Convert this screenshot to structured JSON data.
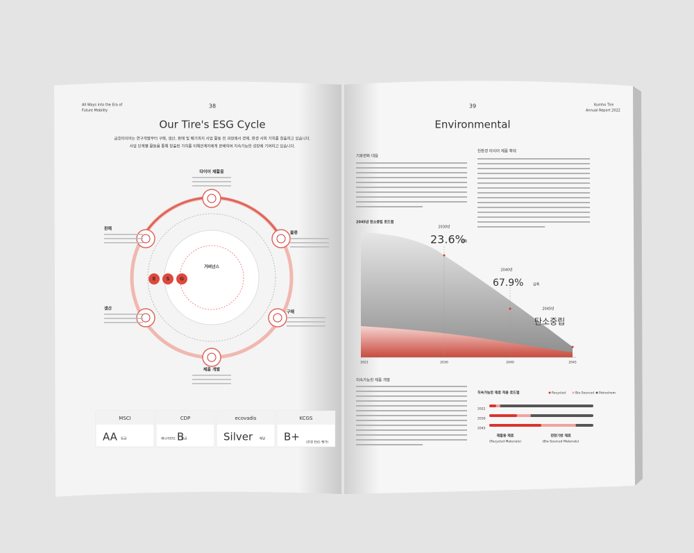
{
  "left_page": {
    "header": "All Ways into the Era of",
    "header2": "Future Mobility",
    "page_number": "38",
    "title": "Our Tire's ESG Cycle",
    "intro": [
      "금호타이어는 연구개발부터 구매, 생산, 판매 및 폐기까지 사업 활동 전 과정에서 경제, 환경 사회 가치를 창출하고 있습니다.",
      "사업 단계별 활동을 통해 창출된 가치를 이해관계자에게 분배하여 지속가능한 성장에 기여하고 있습니다."
    ],
    "cycle": {
      "center": "거버넌스",
      "letters": [
        "E",
        "S",
        "G"
      ],
      "nodes": [
        "타이어 재활용",
        "물류",
        "구매",
        "제품 개발",
        "생산",
        "판매"
      ]
    },
    "ratings": [
      {
        "brand": "MSCI",
        "grade": "AA",
        "suffix": "등급"
      },
      {
        "brand": "CDP",
        "prefix": "매니지먼트",
        "grade": "B",
        "suffix": "등급"
      },
      {
        "brand": "ecovadis",
        "grade": "Silver",
        "suffix": "메달"
      },
      {
        "brand": "KCGS",
        "grade": "B+",
        "suffix": "(한경 ESG 평가)"
      }
    ]
  },
  "right_page": {
    "header": "Kumho Tire",
    "header2": "Annual Report 2022",
    "page_number": "39",
    "title": "Environmental",
    "section1": "기후변화 대응",
    "section2": "친환경 타이어 제품 확대",
    "chart_title": "2045년 탄소중립 로드맵",
    "chart_labels": [
      {
        "year": "2030년",
        "value": "23.6%",
        "unit": "감축"
      },
      {
        "year": "2040년",
        "value": "67.9%",
        "unit": "감축"
      },
      {
        "year": "2045년",
        "value": "탄소중립",
        "unit": ""
      }
    ],
    "chart_years": [
      "2021",
      "2030",
      "2040",
      "2045"
    ],
    "section3": "지속가능한 제품 개발",
    "roadmap_title": "지속가능한 재료 적용 로드맵",
    "legend": [
      "Recycled",
      "Bio-Sourced",
      "Petrochem"
    ],
    "roadmap_years": [
      "2022",
      "2030",
      "2045"
    ],
    "materials": [
      {
        "ko": "재활용 재료",
        "en": "(Recycled Materials)"
      },
      {
        "ko": "천연기반 재료",
        "en": "(Bio-Sourced Materials)"
      }
    ]
  }
}
